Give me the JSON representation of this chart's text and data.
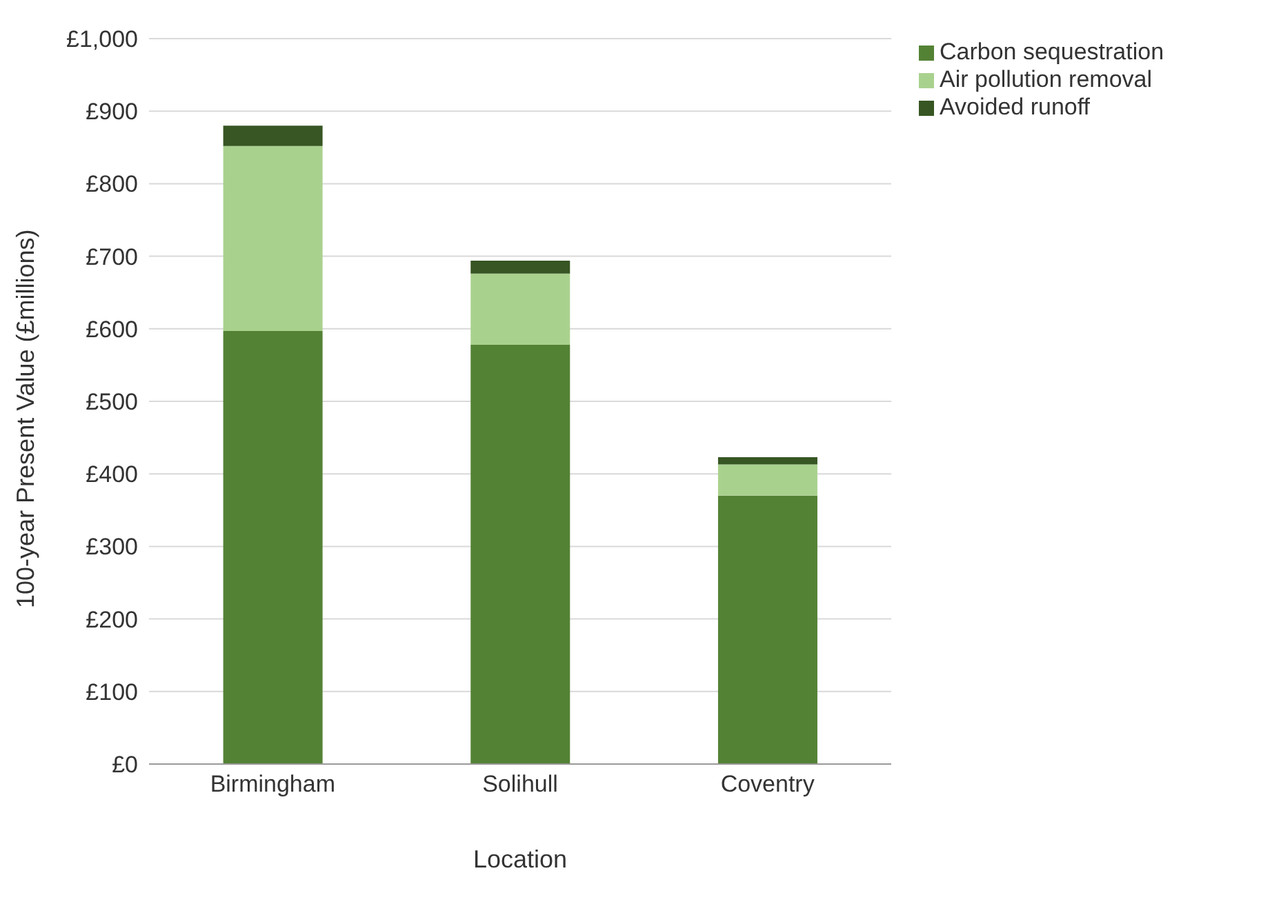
{
  "chart_data": {
    "type": "bar",
    "stacked": true,
    "xlabel": "Location",
    "ylabel": "100-year Present Value (£millions)",
    "categories": [
      "Birmingham",
      "Solihull",
      "Coventry"
    ],
    "series": [
      {
        "name": "Carbon sequestration",
        "color": "#548235",
        "values": [
          597,
          578,
          370
        ]
      },
      {
        "name": "Air pollution removal",
        "color": "#a9d18e",
        "values": [
          255,
          98,
          43
        ]
      },
      {
        "name": "Avoided runoff",
        "color": "#375623",
        "values": [
          28,
          18,
          10
        ]
      }
    ],
    "ylim": [
      0,
      1000
    ],
    "yticks": [
      {
        "value": 0,
        "label": "£0"
      },
      {
        "value": 100,
        "label": "£100"
      },
      {
        "value": 200,
        "label": "£200"
      },
      {
        "value": 300,
        "label": "£300"
      },
      {
        "value": 400,
        "label": "£400"
      },
      {
        "value": 500,
        "label": "£500"
      },
      {
        "value": 600,
        "label": "£600"
      },
      {
        "value": 700,
        "label": "£700"
      },
      {
        "value": 800,
        "label": "£800"
      },
      {
        "value": 900,
        "label": "£900"
      },
      {
        "value": 1000,
        "label": "£1,000"
      }
    ],
    "grid": "y",
    "legend": "top right"
  }
}
